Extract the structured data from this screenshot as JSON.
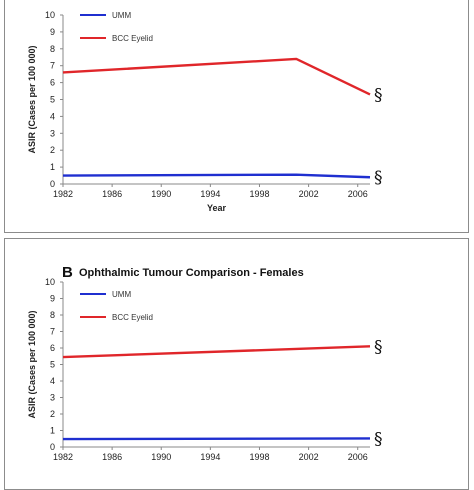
{
  "chart_data": [
    {
      "type": "line",
      "panel_letter": "",
      "title": "",
      "xlabel": "Year",
      "ylabel": "ASIR (Cases per 100 000)",
      "ylim": [
        0,
        10
      ],
      "yticks": [
        0,
        1,
        2,
        3,
        4,
        5,
        6,
        7,
        8,
        9,
        10
      ],
      "xticks": [
        1982,
        1986,
        1990,
        1994,
        1998,
        2002,
        2006
      ],
      "xlim": [
        1982,
        2007
      ],
      "grid": false,
      "legend_position": "top-left",
      "series": [
        {
          "name": "UMM",
          "color": "#1f2fd0",
          "x": [
            1982,
            2001,
            2007
          ],
          "y": [
            0.5,
            0.55,
            0.4
          ],
          "note": "§"
        },
        {
          "name": "BCC Eyelid",
          "color": "#e0262a",
          "x": [
            1982,
            2001,
            2007
          ],
          "y": [
            6.6,
            7.4,
            5.3
          ],
          "note": "§"
        }
      ]
    },
    {
      "type": "line",
      "panel_letter": "B",
      "title": "Ophthalmic Tumour Comparison - Females",
      "xlabel": "",
      "ylabel": "ASIR (Cases per 100 000)",
      "ylim": [
        0,
        10
      ],
      "yticks": [
        0,
        1,
        2,
        3,
        4,
        5,
        6,
        7,
        8,
        9,
        10
      ],
      "xticks": [
        1982,
        1986,
        1990,
        1994,
        1998,
        2002,
        2006
      ],
      "xlim": [
        1982,
        2007
      ],
      "grid": false,
      "legend_position": "top-left",
      "series": [
        {
          "name": "UMM",
          "color": "#1f2fd0",
          "x": [
            1982,
            2007
          ],
          "y": [
            0.48,
            0.52
          ],
          "note": "§"
        },
        {
          "name": "BCC Eyelid",
          "color": "#e0262a",
          "x": [
            1982,
            2007
          ],
          "y": [
            5.45,
            6.1
          ],
          "note": "§"
        }
      ]
    }
  ]
}
